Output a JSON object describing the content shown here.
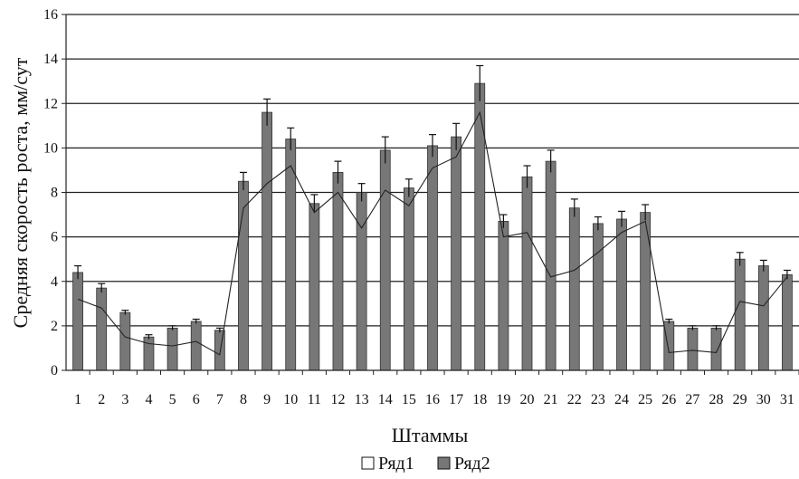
{
  "chart_data": {
    "type": "bar",
    "title": "",
    "xlabel": "Штаммы",
    "ylabel": "Средняя скорость роста, мм/сут",
    "ylim": [
      0,
      16
    ],
    "yticks": [
      0,
      2,
      4,
      6,
      8,
      10,
      12,
      14,
      16
    ],
    "grid": true,
    "legend_position": "bottom",
    "categories": [
      "1",
      "2",
      "3",
      "4",
      "5",
      "6",
      "7",
      "8",
      "9",
      "10",
      "11",
      "12",
      "13",
      "14",
      "15",
      "16",
      "17",
      "18",
      "19",
      "20",
      "21",
      "22",
      "23",
      "24",
      "25",
      "26",
      "27",
      "28",
      "29",
      "30",
      "31"
    ],
    "series": [
      {
        "name": "Ряд1",
        "mark": "line",
        "values": [
          3.2,
          2.8,
          1.5,
          1.2,
          1.1,
          1.3,
          0.7,
          7.3,
          8.4,
          9.2,
          7.1,
          8.0,
          6.4,
          8.1,
          7.4,
          9.1,
          9.6,
          11.6,
          6.0,
          6.2,
          4.2,
          4.5,
          5.3,
          6.2,
          6.7,
          0.8,
          0.9,
          0.8,
          3.1,
          2.9,
          4.2
        ],
        "color": "#ffffff"
      },
      {
        "name": "Ряд2",
        "mark": "bar",
        "values": [
          4.4,
          3.7,
          2.6,
          1.5,
          1.9,
          2.2,
          1.8,
          8.5,
          11.6,
          10.4,
          7.5,
          8.9,
          8.0,
          9.9,
          8.2,
          10.1,
          10.5,
          12.9,
          6.7,
          8.7,
          9.4,
          7.3,
          6.6,
          6.8,
          7.1,
          2.2,
          1.9,
          1.9,
          5.0,
          4.7,
          4.3
        ],
        "errors": [
          0.3,
          0.2,
          0.1,
          0.1,
          0.1,
          0.1,
          0.1,
          0.4,
          0.6,
          0.5,
          0.4,
          0.5,
          0.4,
          0.6,
          0.4,
          0.5,
          0.6,
          0.8,
          0.3,
          0.5,
          0.5,
          0.4,
          0.3,
          0.35,
          0.35,
          0.1,
          0.1,
          0.1,
          0.3,
          0.25,
          0.2
        ],
        "color": "#777777"
      }
    ],
    "legend": [
      {
        "label": "Ряд1",
        "swatch": "#ffffff"
      },
      {
        "label": "Ряд2",
        "swatch": "#777777"
      }
    ]
  }
}
